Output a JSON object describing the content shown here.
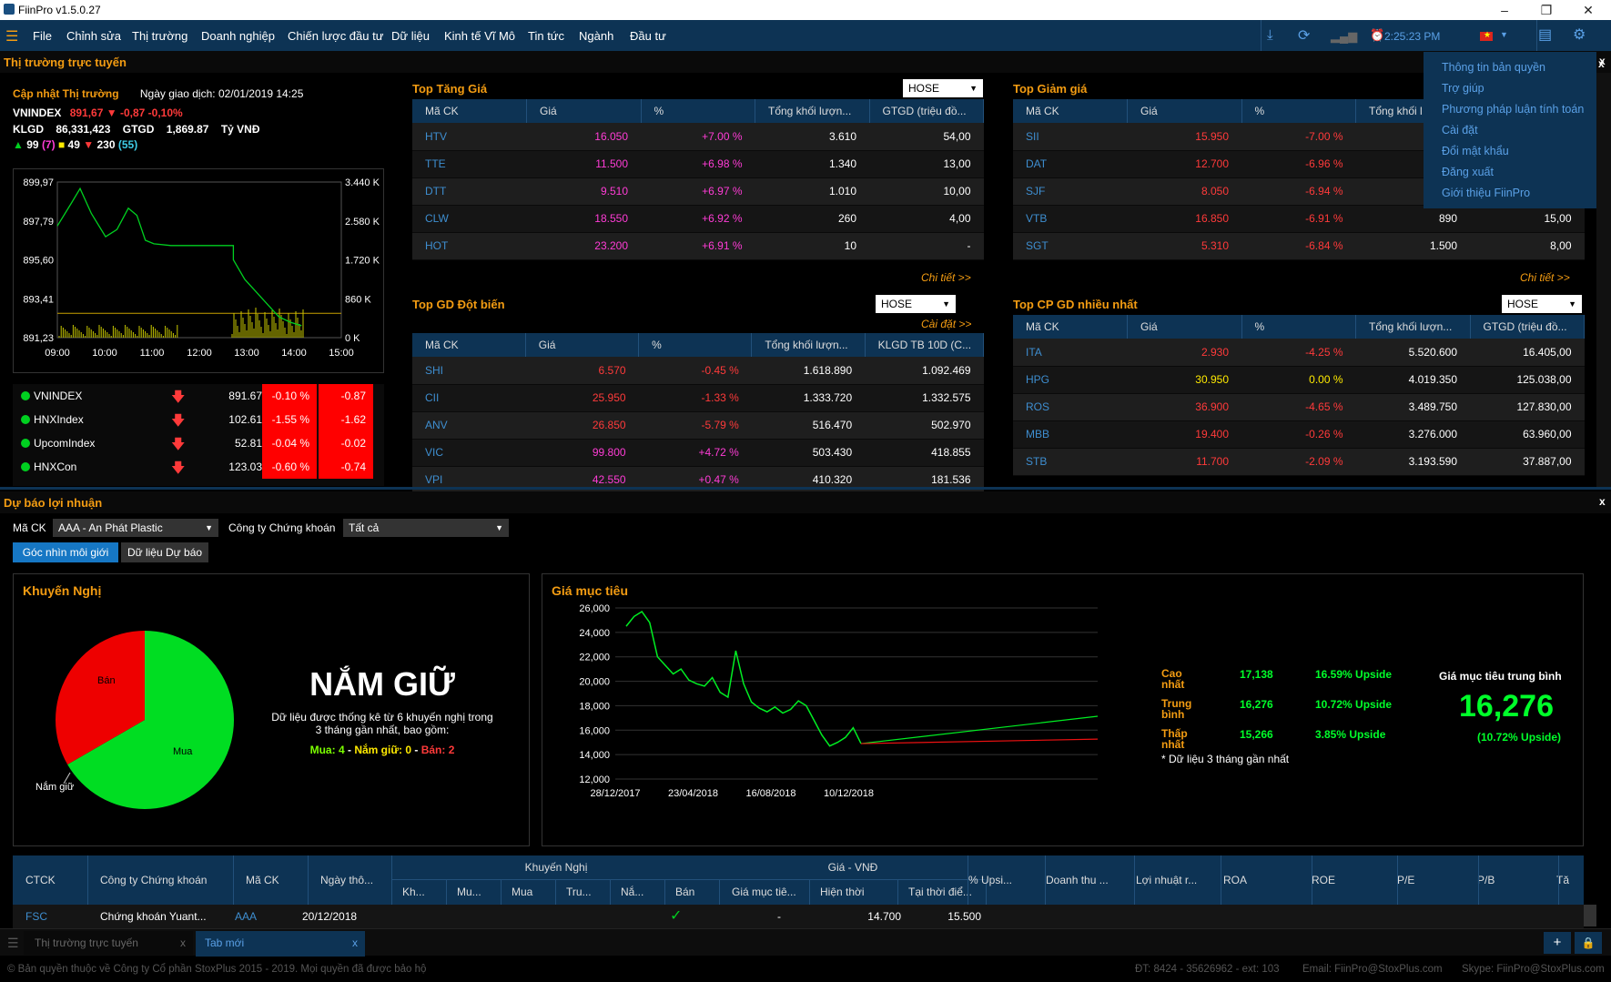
{
  "window": {
    "title": "FiinPro v1.5.0.27"
  },
  "menu": {
    "items": [
      "File",
      "Chỉnh sửa",
      "Thị trường",
      "Doanh nghiệp",
      "Chiến lược đầu tư",
      "Dữ liệu",
      "Kinh tế Vĩ Mô",
      "Tin tức",
      "Ngành",
      "Đầu tư"
    ],
    "time": "2:25:23 PM"
  },
  "settings_menu": {
    "items": [
      "Thông tin bản quyền",
      "Trợ giúp",
      "Phương pháp luận tính toán",
      "Cài đặt",
      "Đổi mật khẩu",
      "Đăng xuất",
      "Giới thiệu FiinPro"
    ]
  },
  "market": {
    "section_title": "Thị trường trực tuyến",
    "update_label": "Cập nhật Thị trường",
    "date_label": "Ngày giao dịch: 02/01/2019 14:25",
    "index_name": "VNINDEX",
    "index_value": "891,67",
    "index_change": "-0,87",
    "index_pct": "-0,10%",
    "klgd_label": "KLGD",
    "klgd": "86,331,423",
    "gtgd_label": "GTGD",
    "gtgd": "1,869.87",
    "unit": "Tỷ VNĐ",
    "adv": "99",
    "adv_ceil": "(7)",
    "unch": "49",
    "dec": "230",
    "dec_floor": "(55)",
    "y_ticks": [
      "899,97",
      "897,79",
      "895,60",
      "893,41",
      "891,23"
    ],
    "vol_ticks": [
      "3.440 K",
      "2.580 K",
      "1.720 K",
      "860 K",
      "0 K"
    ],
    "x_ticks": [
      "09:00",
      "10:00",
      "11:00",
      "12:00",
      "13:00",
      "14:00",
      "15:00"
    ],
    "indices": [
      {
        "name": "VNINDEX",
        "value": "891.67",
        "pct": "-0.10 %",
        "chg": "-0.87"
      },
      {
        "name": "HNXIndex",
        "value": "102.61",
        "pct": "-1.55 %",
        "chg": "-1.62"
      },
      {
        "name": "UpcomIndex",
        "value": "52.81",
        "pct": "-0.04 %",
        "chg": "-0.02"
      },
      {
        "name": "HNXCon",
        "value": "123.03",
        "pct": "-0.60 %",
        "chg": "-0.74"
      }
    ]
  },
  "top_gain": {
    "title": "Top Tăng Giá",
    "exchange": "HOSE",
    "detail": "Chi tiết >>",
    "headers": [
      "Mã CK",
      "Giá",
      "%",
      "Tổng khối lượn...",
      "GTGD (triệu đồ..."
    ],
    "rows": [
      [
        "HTV",
        "16.050",
        "+7.00 %",
        "3.610",
        "54,00"
      ],
      [
        "TTE",
        "11.500",
        "+6.98 %",
        "1.340",
        "13,00"
      ],
      [
        "DTT",
        "9.510",
        "+6.97 %",
        "1.010",
        "10,00"
      ],
      [
        "CLW",
        "18.550",
        "+6.92 %",
        "260",
        "4,00"
      ],
      [
        "HOT",
        "23.200",
        "+6.91 %",
        "10",
        "-"
      ]
    ]
  },
  "top_loss": {
    "title": "Top Giảm giá",
    "detail": "Chi tiết >>",
    "headers": [
      "Mã CK",
      "Giá",
      "%",
      "Tổng khối l",
      "GTGD (triệu đồ..."
    ],
    "rows": [
      [
        "SII",
        "15.950",
        "-7.00 %",
        "",
        ""
      ],
      [
        "DAT",
        "12.700",
        "-6.96 %",
        "",
        ""
      ],
      [
        "SJF",
        "8.050",
        "-6.94 %",
        "",
        ""
      ],
      [
        "VTB",
        "16.850",
        "-6.91 %",
        "890",
        "15,00"
      ],
      [
        "SGT",
        "5.310",
        "-6.84 %",
        "1.500",
        "8,00"
      ]
    ]
  },
  "top_spike": {
    "title": "Top GD Đột biến",
    "exchange": "HOSE",
    "settings": "Cài đặt >>",
    "headers": [
      "Mã CK",
      "Giá",
      "%",
      "Tổng khối lượn...",
      "KLGD TB 10D (C..."
    ],
    "rows": [
      [
        "SHI",
        "6.570",
        "-0.45 %",
        "1.618.890",
        "1.092.469"
      ],
      [
        "CII",
        "25.950",
        "-1.33 %",
        "1.333.720",
        "1.332.575"
      ],
      [
        "ANV",
        "26.850",
        "-5.79 %",
        "516.470",
        "502.970"
      ],
      [
        "VIC",
        "99.800",
        "+4.72 %",
        "503.430",
        "418.855"
      ],
      [
        "VPI",
        "42.550",
        "+0.47 %",
        "410.320",
        "181.536"
      ]
    ]
  },
  "top_volume": {
    "title": "Top CP GD nhiều nhất",
    "exchange": "HOSE",
    "headers": [
      "Mã CK",
      "Giá",
      "%",
      "Tổng khối lượn...",
      "GTGD (triệu đồ..."
    ],
    "rows": [
      [
        "ITA",
        "2.930",
        "-4.25 %",
        "5.520.600",
        "16.405,00"
      ],
      [
        "HPG",
        "30.950",
        "0.00 %",
        "4.019.350",
        "125.038,00"
      ],
      [
        "ROS",
        "36.900",
        "-4.65 %",
        "3.489.750",
        "127.830,00"
      ],
      [
        "MBB",
        "19.400",
        "-0.26 %",
        "3.276.000",
        "63.960,00"
      ],
      [
        "STB",
        "11.700",
        "-2.09 %",
        "3.193.590",
        "37.887,00"
      ]
    ]
  },
  "forecast": {
    "section_title": "Dự báo lợi nhuận",
    "ticker_label": "Mã CK",
    "ticker_value": "AAA - An Phát Plastic",
    "broker_label": "Công ty Chứng khoán",
    "broker_value": "Tất cả",
    "tabs": [
      "Góc nhìn môi giới",
      "Dữ liệu Dự báo"
    ],
    "rec_title": "Khuyến Nghị",
    "pie_labels": [
      "Bán",
      "Mua",
      "Nắm giữ"
    ],
    "rec_big": "NẮM GIỮ",
    "rec_desc1": "Dữ liệu được thống kê từ 6 khuyến nghị trong",
    "rec_desc2": "3 tháng gần nhất, bao gồm:",
    "rec_mua": "Mua: 4",
    "rec_nam": "Nắm giữ: 0",
    "rec_ban": "Bán: 2",
    "target_title": "Giá mục tiêu",
    "t_y": [
      "26,000",
      "24,000",
      "22,000",
      "20,000",
      "18,000",
      "16,000",
      "14,000",
      "12,000"
    ],
    "t_x": [
      "28/12/2017",
      "23/04/2018",
      "16/08/2018",
      "10/12/2018"
    ],
    "stats": [
      {
        "label": "Cao nhất",
        "value": "17,138",
        "upside": "16.59% Upside"
      },
      {
        "label": "Trung bình",
        "value": "16,276",
        "upside": "10.72% Upside"
      },
      {
        "label": "Thấp nhất",
        "value": "15,266",
        "upside": "3.85% Upside"
      }
    ],
    "note": "* Dữ liệu 3 tháng gần nhất",
    "avg_label": "Giá mục tiêu trung bình",
    "avg_value": "16,276",
    "avg_upside": "(10.72% Upside)"
  },
  "bottom_table": {
    "headers": [
      "CTCK",
      "Công ty Chứng khoán",
      "Mã CK",
      "Ngày thô...",
      "Khuyến Nghị",
      "Giá - VNĐ",
      "% Upsi...",
      "Doanh thu ...",
      "Lợi nhuật r...",
      "ROA",
      "ROE",
      "P/E",
      "P/B",
      "Tă"
    ],
    "sub_kn": [
      "Kh...",
      "Mu...",
      "Mua",
      "Tru...",
      "Nắ...",
      "Bán"
    ],
    "sub_gia": [
      "Giá mục tiê...",
      "Hiện thời",
      "Tại thời điể..."
    ],
    "row": [
      "FSC",
      "Chứng khoán Yuant...",
      "AAA",
      "20/12/2018",
      "-",
      "14.700",
      "15.500"
    ]
  },
  "tabsbar": {
    "tabs": [
      "Thị trường trực tuyến",
      "Tab mới"
    ]
  },
  "footer": {
    "copyright": "© Bản quyền thuộc về Công ty Cổ phần StoxPlus 2015 - 2019. Mọi quyền đã được bảo hộ",
    "phone": "ĐT: 8424 - 35626962 - ext: 103",
    "email": "Email: FiinPro@StoxPlus.com",
    "skype": "Skype: FiinPro@StoxPlus.com"
  },
  "chart_data": [
    {
      "type": "line",
      "title": "VNINDEX intraday",
      "x_ticks": [
        "09:00",
        "10:00",
        "11:00",
        "12:00",
        "13:00",
        "14:00",
        "15:00"
      ],
      "ylim": [
        891.23,
        899.97
      ],
      "series": [
        {
          "name": "VNINDEX",
          "values": [
            897.5,
            898.8,
            899.6,
            898.2,
            896.9,
            897.3,
            898.5,
            898.1,
            896.7,
            896.5,
            896.4,
            896.4,
            896.4,
            896.4,
            895.6,
            894.5,
            893.8,
            893.1,
            892.4,
            892.1,
            891.9
          ]
        }
      ]
    },
    {
      "type": "pie",
      "title": "Khuyến Nghị",
      "categories": [
        "Mua",
        "Bán",
        "Nắm giữ"
      ],
      "values": [
        4,
        2,
        0
      ]
    },
    {
      "type": "line",
      "title": "Giá mục tiêu",
      "x_ticks": [
        "28/12/2017",
        "23/04/2018",
        "16/08/2018",
        "10/12/2018"
      ],
      "ylim": [
        12000,
        26000
      ],
      "series": [
        {
          "name": "Giá",
          "values": [
            24500,
            25300,
            25700,
            24800,
            22000,
            21300,
            20600,
            21000,
            20100,
            19800,
            19600,
            20300,
            19100,
            18700,
            22500,
            19800,
            18300,
            17800,
            17500,
            17900,
            17400,
            17700,
            18400,
            18000,
            16800,
            15600,
            14700,
            15000,
            15400,
            16200,
            14900
          ]
        }
      ]
    }
  ]
}
